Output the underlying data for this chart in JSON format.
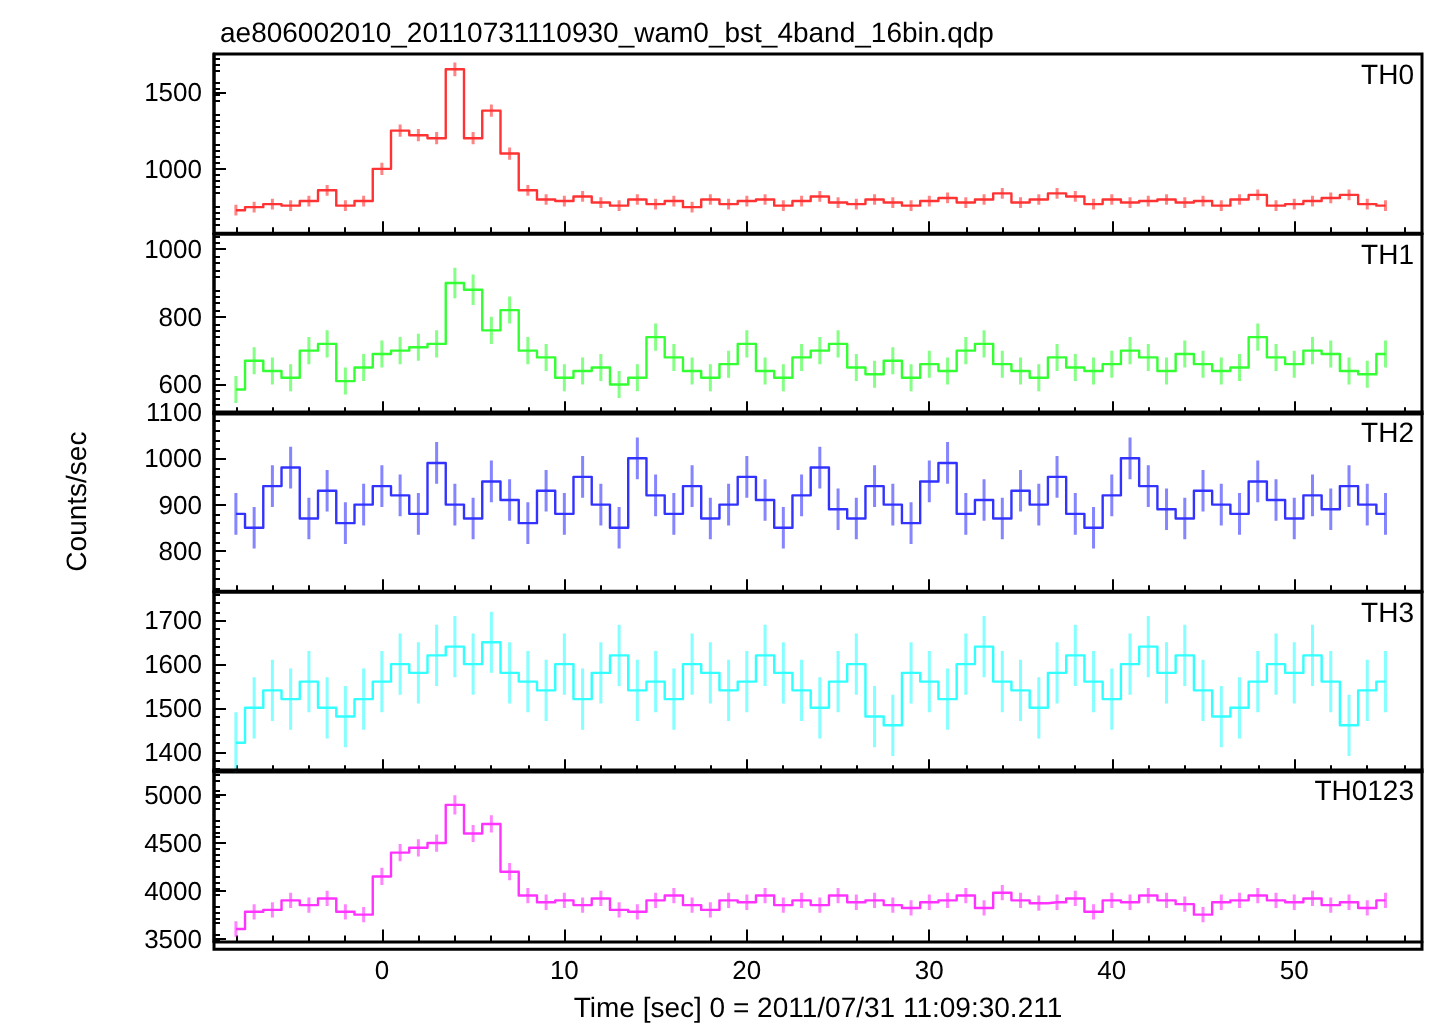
{
  "chart_data": [
    {
      "type": "step",
      "title": "ae806002010_20110731110930_wam0_bst_4band_16bin.qdp",
      "annotations": [
        "TH0"
      ],
      "tick_labels": "y",
      "x": [
        -8,
        -7,
        -6,
        -5,
        -4,
        -3,
        -2,
        -1,
        0,
        1,
        2,
        3,
        4,
        5,
        6,
        7,
        8,
        9,
        10,
        11,
        12,
        13,
        14,
        15,
        16,
        17,
        18,
        19,
        20,
        21,
        22,
        23,
        24,
        25,
        26,
        27,
        28,
        29,
        30,
        31,
        32,
        33,
        34,
        35,
        36,
        37,
        38,
        39,
        40,
        41,
        42,
        43,
        44,
        45,
        46,
        47,
        48,
        49,
        50,
        51,
        52,
        53,
        54,
        55
      ],
      "xlim": [
        -9.2,
        57
      ],
      "xticks": [
        0,
        10,
        20,
        30,
        40,
        50
      ],
      "ylim": [
        580,
        1750
      ],
      "yticks": [
        1000,
        1500
      ],
      "series": [
        {
          "color": "#ff3333",
          "values": [
            730,
            750,
            770,
            760,
            790,
            860,
            760,
            790,
            1000,
            1250,
            1220,
            1200,
            1650,
            1200,
            1380,
            1100,
            860,
            800,
            790,
            820,
            780,
            760,
            800,
            770,
            790,
            750,
            800,
            770,
            790,
            800,
            760,
            790,
            820,
            780,
            770,
            800,
            780,
            760,
            790,
            810,
            780,
            800,
            840,
            780,
            800,
            840,
            820,
            770,
            800,
            780,
            790,
            800,
            780,
            790,
            760,
            800,
            830,
            760,
            770,
            790,
            810,
            830,
            770,
            760
          ],
          "errors": [
            35,
            35,
            35,
            35,
            35,
            35,
            35,
            35,
            40,
            40,
            40,
            40,
            45,
            40,
            40,
            40,
            35,
            35,
            35,
            35,
            35,
            35,
            35,
            35,
            35,
            35,
            35,
            35,
            35,
            35,
            35,
            35,
            35,
            35,
            35,
            35,
            35,
            35,
            35,
            35,
            35,
            35,
            35,
            35,
            35,
            35,
            35,
            35,
            35,
            35,
            35,
            35,
            35,
            35,
            35,
            35,
            35,
            35,
            35,
            35,
            35,
            35,
            35,
            35
          ]
        }
      ]
    },
    {
      "type": "step",
      "annotations": [
        "TH1"
      ],
      "tick_labels": "y",
      "x": [
        -8,
        -7,
        -6,
        -5,
        -4,
        -3,
        -2,
        -1,
        0,
        1,
        2,
        3,
        4,
        5,
        6,
        7,
        8,
        9,
        10,
        11,
        12,
        13,
        14,
        15,
        16,
        17,
        18,
        19,
        20,
        21,
        22,
        23,
        24,
        25,
        26,
        27,
        28,
        29,
        30,
        31,
        32,
        33,
        34,
        35,
        36,
        37,
        38,
        39,
        40,
        41,
        42,
        43,
        44,
        45,
        46,
        47,
        48,
        49,
        50,
        51,
        52,
        53,
        54,
        55
      ],
      "xlim": [
        -9.2,
        57
      ],
      "xticks": [
        0,
        10,
        20,
        30,
        40,
        50
      ],
      "ylim": [
        515,
        1045
      ],
      "yticks": [
        600,
        800,
        1000
      ],
      "series": [
        {
          "color": "#33ff33",
          "values": [
            585,
            670,
            640,
            620,
            700,
            720,
            610,
            650,
            690,
            700,
            710,
            720,
            900,
            880,
            760,
            820,
            700,
            680,
            620,
            640,
            650,
            600,
            620,
            740,
            680,
            640,
            620,
            660,
            720,
            640,
            620,
            680,
            700,
            720,
            650,
            630,
            670,
            620,
            660,
            640,
            700,
            720,
            660,
            640,
            620,
            680,
            650,
            640,
            660,
            700,
            680,
            640,
            690,
            660,
            640,
            650,
            740,
            680,
            660,
            700,
            690,
            640,
            630,
            690
          ],
          "errors": [
            40,
            40,
            40,
            40,
            40,
            40,
            40,
            40,
            40,
            40,
            40,
            40,
            45,
            45,
            40,
            40,
            40,
            40,
            40,
            40,
            40,
            40,
            40,
            40,
            40,
            40,
            40,
            40,
            40,
            40,
            40,
            40,
            40,
            40,
            40,
            40,
            40,
            40,
            40,
            40,
            40,
            40,
            40,
            40,
            40,
            40,
            40,
            40,
            40,
            40,
            40,
            40,
            40,
            40,
            40,
            40,
            40,
            40,
            40,
            40,
            40,
            40,
            40,
            40
          ]
        }
      ]
    },
    {
      "type": "step",
      "annotations": [
        "TH2"
      ],
      "tick_labels": "y",
      "ylabel": "Counts/sec",
      "x": [
        -8,
        -7,
        -6,
        -5,
        -4,
        -3,
        -2,
        -1,
        0,
        1,
        2,
        3,
        4,
        5,
        6,
        7,
        8,
        9,
        10,
        11,
        12,
        13,
        14,
        15,
        16,
        17,
        18,
        19,
        20,
        21,
        22,
        23,
        24,
        25,
        26,
        27,
        28,
        29,
        30,
        31,
        32,
        33,
        34,
        35,
        36,
        37,
        38,
        39,
        40,
        41,
        42,
        43,
        44,
        45,
        46,
        47,
        48,
        49,
        50,
        51,
        52,
        53,
        54,
        55
      ],
      "xlim": [
        -9.2,
        57
      ],
      "xticks": [
        0,
        10,
        20,
        30,
        40,
        50
      ],
      "ylim": [
        713,
        1100
      ],
      "yticks": [
        800,
        900,
        1000,
        1100
      ],
      "series": [
        {
          "color": "#3333ff",
          "values": [
            880,
            850,
            940,
            980,
            870,
            930,
            860,
            900,
            940,
            920,
            880,
            990,
            900,
            870,
            950,
            910,
            860,
            930,
            880,
            960,
            900,
            850,
            1000,
            920,
            880,
            940,
            870,
            900,
            960,
            910,
            850,
            920,
            980,
            890,
            870,
            940,
            900,
            860,
            950,
            990,
            880,
            910,
            870,
            930,
            900,
            960,
            880,
            850,
            920,
            1000,
            940,
            890,
            870,
            930,
            900,
            880,
            950,
            910,
            870,
            920,
            890,
            940,
            900,
            880
          ],
          "errors": [
            45,
            45,
            45,
            45,
            45,
            45,
            45,
            45,
            45,
            45,
            45,
            45,
            45,
            45,
            45,
            45,
            45,
            45,
            45,
            45,
            45,
            45,
            45,
            45,
            45,
            45,
            45,
            45,
            45,
            45,
            45,
            45,
            45,
            45,
            45,
            45,
            45,
            45,
            45,
            45,
            45,
            45,
            45,
            45,
            45,
            45,
            45,
            45,
            45,
            45,
            45,
            45,
            45,
            45,
            45,
            45,
            45,
            45,
            45,
            45,
            45,
            45,
            45,
            45
          ]
        }
      ]
    },
    {
      "type": "step",
      "annotations": [
        "TH3"
      ],
      "tick_labels": "y",
      "x": [
        -8,
        -7,
        -6,
        -5,
        -4,
        -3,
        -2,
        -1,
        0,
        1,
        2,
        3,
        4,
        5,
        6,
        7,
        8,
        9,
        10,
        11,
        12,
        13,
        14,
        15,
        16,
        17,
        18,
        19,
        20,
        21,
        22,
        23,
        24,
        25,
        26,
        27,
        28,
        29,
        30,
        31,
        32,
        33,
        34,
        35,
        36,
        37,
        38,
        39,
        40,
        41,
        42,
        43,
        44,
        45,
        46,
        47,
        48,
        49,
        50,
        51,
        52,
        53,
        54,
        55
      ],
      "xlim": [
        -9.2,
        57
      ],
      "xticks": [
        0,
        10,
        20,
        30,
        40,
        50
      ],
      "ylim": [
        1355,
        1765
      ],
      "yticks": [
        1400,
        1500,
        1600,
        1700
      ],
      "series": [
        {
          "color": "#33ffff",
          "values": [
            1420,
            1500,
            1540,
            1520,
            1560,
            1500,
            1480,
            1520,
            1560,
            1600,
            1580,
            1620,
            1640,
            1600,
            1650,
            1580,
            1560,
            1540,
            1600,
            1520,
            1580,
            1620,
            1540,
            1560,
            1520,
            1600,
            1580,
            1540,
            1560,
            1620,
            1580,
            1540,
            1500,
            1560,
            1600,
            1480,
            1460,
            1580,
            1560,
            1520,
            1600,
            1640,
            1560,
            1540,
            1500,
            1580,
            1620,
            1560,
            1520,
            1600,
            1640,
            1580,
            1620,
            1540,
            1480,
            1500,
            1560,
            1600,
            1580,
            1620,
            1560,
            1460,
            1540,
            1560
          ],
          "errors": [
            70,
            70,
            70,
            70,
            70,
            70,
            70,
            70,
            70,
            70,
            70,
            70,
            70,
            70,
            70,
            70,
            70,
            70,
            70,
            70,
            70,
            70,
            70,
            70,
            70,
            70,
            70,
            70,
            70,
            70,
            70,
            70,
            70,
            70,
            70,
            70,
            70,
            70,
            70,
            70,
            70,
            70,
            70,
            70,
            70,
            70,
            70,
            70,
            70,
            70,
            70,
            70,
            70,
            70,
            70,
            70,
            70,
            70,
            70,
            70,
            70,
            70,
            70,
            70
          ]
        }
      ]
    },
    {
      "type": "step",
      "annotations": [
        "TH0123"
      ],
      "xlabel": "Time [sec] 0 = 2011/07/31 11:09:30.211",
      "x": [
        -8,
        -7,
        -6,
        -5,
        -4,
        -3,
        -2,
        -1,
        0,
        1,
        2,
        3,
        4,
        5,
        6,
        7,
        8,
        9,
        10,
        11,
        12,
        13,
        14,
        15,
        16,
        17,
        18,
        19,
        20,
        21,
        22,
        23,
        24,
        25,
        26,
        27,
        28,
        29,
        30,
        31,
        32,
        33,
        34,
        35,
        36,
        37,
        38,
        39,
        40,
        41,
        42,
        43,
        44,
        45,
        46,
        47,
        48,
        49,
        50,
        51,
        52,
        53,
        54,
        55
      ],
      "xlim": [
        -9.2,
        57
      ],
      "xticks": [
        0,
        10,
        20,
        30,
        40,
        50
      ],
      "ylim": [
        3470,
        5265
      ],
      "yticks": [
        3500,
        4000,
        4500,
        5000
      ],
      "series": [
        {
          "color": "#ff33ff",
          "values": [
            3600,
            3780,
            3800,
            3900,
            3850,
            3920,
            3780,
            3750,
            4150,
            4400,
            4450,
            4500,
            4900,
            4600,
            4700,
            4200,
            3950,
            3880,
            3900,
            3850,
            3920,
            3800,
            3780,
            3900,
            3950,
            3850,
            3800,
            3900,
            3880,
            3950,
            3850,
            3900,
            3850,
            3950,
            3880,
            3900,
            3850,
            3820,
            3880,
            3900,
            3950,
            3820,
            3980,
            3900,
            3870,
            3880,
            3920,
            3780,
            3900,
            3880,
            3950,
            3900,
            3860,
            3750,
            3880,
            3900,
            3950,
            3900,
            3880,
            3920,
            3850,
            3880,
            3820,
            3900
          ],
          "errors": [
            80,
            80,
            80,
            80,
            80,
            80,
            80,
            80,
            90,
            90,
            90,
            90,
            100,
            90,
            90,
            90,
            80,
            80,
            80,
            80,
            80,
            80,
            80,
            80,
            80,
            80,
            80,
            80,
            80,
            80,
            80,
            80,
            80,
            80,
            80,
            80,
            80,
            80,
            80,
            80,
            80,
            80,
            80,
            80,
            80,
            80,
            80,
            80,
            80,
            80,
            80,
            80,
            80,
            80,
            80,
            80,
            80,
            80,
            80,
            80,
            80,
            80,
            80,
            80
          ]
        }
      ]
    }
  ]
}
